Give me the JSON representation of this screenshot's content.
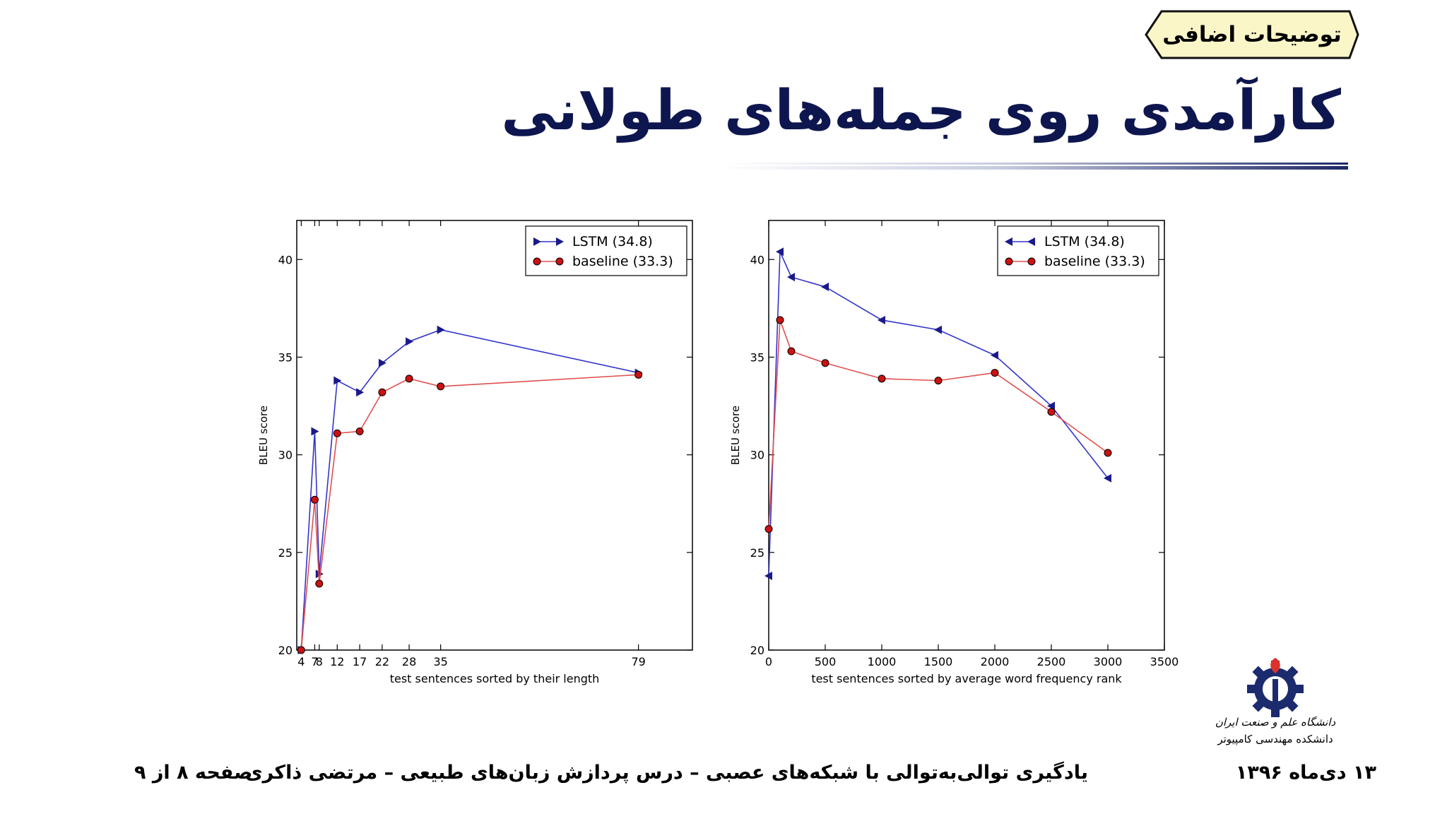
{
  "slide": {
    "badge": "توضیحات اضافی",
    "title": "کارآمدی روی جمله‌های طولانی",
    "footer_date": "۱۳ دی‌ماه ۱۳۹۶",
    "footer_course": "یادگیری توالی‌به‌توالی با شبکه‌های عصبی – درس پردازش زبان‌های طبیعی – مرتضی ذاکری",
    "footer_page": "صفحه ۸ از ۹",
    "logo_line1": "دانشگاه علم و صنعت ایران",
    "logo_line2": "دانشکده مهندسی کامپیوتر"
  },
  "colors": {
    "title": "#0e1650",
    "lstm": "#3333cc",
    "lstm_marker": "#1a1a8c",
    "baseline": "#e05050",
    "baseline_marker": "#cc1111"
  },
  "chart_data": [
    {
      "type": "line",
      "xlabel": "test sentences sorted by their length",
      "ylabel": "BLEU score",
      "x_ticks": [
        "4",
        "7",
        "8",
        "12",
        "17",
        "22",
        "28",
        "35",
        "79"
      ],
      "y_ticks": [
        20,
        25,
        30,
        35,
        40
      ],
      "ylim": [
        20,
        42
      ],
      "grid": false,
      "legend_position": "top-right",
      "series": [
        {
          "name": "LSTM  (34.8)",
          "marker": "triangle-right",
          "x": [
            "4",
            "7",
            "8",
            "12",
            "17",
            "22",
            "28",
            "35",
            "79"
          ],
          "values": [
            20.0,
            31.2,
            23.9,
            33.8,
            33.2,
            34.7,
            35.8,
            36.4,
            34.2
          ]
        },
        {
          "name": "baseline (33.3)",
          "marker": "circle",
          "x": [
            "4",
            "7",
            "8",
            "12",
            "17",
            "22",
            "28",
            "35",
            "79"
          ],
          "values": [
            20.0,
            27.7,
            23.4,
            31.1,
            31.2,
            33.2,
            33.9,
            33.5,
            34.1
          ]
        }
      ]
    },
    {
      "type": "line",
      "xlabel": "test sentences sorted by average word frequency rank",
      "ylabel": "BLEU score",
      "x_ticks": [
        0,
        500,
        1000,
        1500,
        2000,
        2500,
        3000,
        3500
      ],
      "y_ticks": [
        20,
        25,
        30,
        35,
        40
      ],
      "xlim": [
        0,
        3500
      ],
      "ylim": [
        20,
        42
      ],
      "grid": false,
      "legend_position": "top-right",
      "series": [
        {
          "name": "LSTM  (34.8)",
          "marker": "triangle-left",
          "x": [
            0,
            100,
            200,
            500,
            1000,
            1500,
            2000,
            2500,
            3000
          ],
          "values": [
            23.8,
            40.4,
            39.1,
            38.6,
            36.9,
            36.4,
            35.1,
            32.5,
            28.8
          ]
        },
        {
          "name": "baseline (33.3)",
          "marker": "circle",
          "x": [
            0,
            100,
            200,
            500,
            1000,
            1500,
            2000,
            2500,
            3000
          ],
          "values": [
            26.2,
            36.9,
            35.3,
            34.7,
            33.9,
            33.8,
            34.2,
            32.2,
            30.1
          ]
        }
      ]
    }
  ]
}
